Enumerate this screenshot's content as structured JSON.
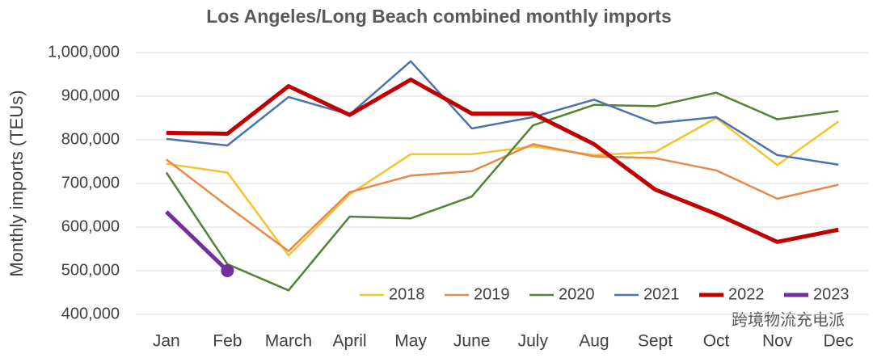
{
  "chart_data": {
    "type": "line",
    "title": "Los Angeles/Long Beach combined monthly imports",
    "y_label": "Monthly imports (TEUs)",
    "annotation": "跨境物流充电派",
    "categories": [
      "Jan",
      "Feb",
      "March",
      "April",
      "May",
      "June",
      "July",
      "Aug",
      "Sept",
      "Oct",
      "Nov",
      "Dec"
    ],
    "series": [
      {
        "name": "2018",
        "color": "#f5c230",
        "line_width": 2.5,
        "values": [
          745000,
          725000,
          535000,
          675000,
          767000,
          767000,
          785000,
          765000,
          772000,
          850000,
          742000,
          842000
        ]
      },
      {
        "name": "2019",
        "color": "#e8894a",
        "line_width": 2.5,
        "values": [
          755000,
          648000,
          545000,
          680000,
          718000,
          728000,
          790000,
          762000,
          758000,
          730000,
          665000,
          697000
        ]
      },
      {
        "name": "2020",
        "color": "#548235",
        "line_width": 2.5,
        "values": [
          725000,
          515000,
          455000,
          624000,
          620000,
          670000,
          833000,
          880000,
          877000,
          908000,
          847000,
          866000
        ]
      },
      {
        "name": "2021",
        "color": "#4a72b0",
        "line_width": 2.5,
        "values": [
          802000,
          787000,
          898000,
          858000,
          980000,
          826000,
          852000,
          892000,
          838000,
          852000,
          765000,
          743000
        ]
      },
      {
        "name": "2022",
        "color": "#c00000",
        "line_width": 5,
        "values": [
          816000,
          814000,
          923000,
          857000,
          938000,
          860000,
          860000,
          790000,
          686000,
          630000,
          566000,
          594000
        ]
      },
      {
        "name": "2023",
        "color": "#7030a0",
        "line_width": 5,
        "end_marker": true,
        "values": [
          635000,
          500000,
          null,
          null,
          null,
          null,
          null,
          null,
          null,
          null,
          null,
          null
        ]
      }
    ],
    "ylim": [
      400000,
      1000000
    ],
    "yticks": [
      {
        "value": 400000,
        "label": "400,000"
      },
      {
        "value": 500000,
        "label": "500,000"
      },
      {
        "value": 600000,
        "label": "600,000"
      },
      {
        "value": 700000,
        "label": "700,000"
      },
      {
        "value": 800000,
        "label": "800,000"
      },
      {
        "value": 900000,
        "label": "900,000"
      },
      {
        "value": 1000000,
        "label": "1,000,000"
      }
    ],
    "grid": true,
    "legend": "bottom-right"
  }
}
